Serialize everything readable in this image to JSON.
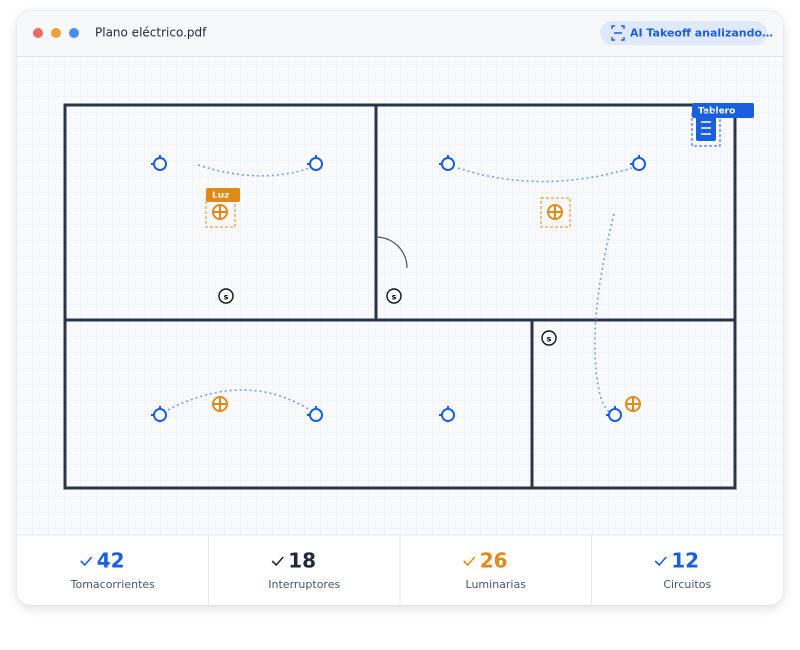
{
  "header": {
    "file_name": "Plano eléctrico.pdf",
    "status_button": "AI Takeoff analizando…"
  },
  "plan": {
    "light_tag": "Luz",
    "panel_tag": "Tablero",
    "switch_label": "s"
  },
  "stats": [
    {
      "value": "42",
      "label": "Tomacorrientes"
    },
    {
      "value": "18",
      "label": "Interruptores"
    },
    {
      "value": "26",
      "label": "Luminarias"
    },
    {
      "value": "12",
      "label": "Circuitos"
    }
  ]
}
